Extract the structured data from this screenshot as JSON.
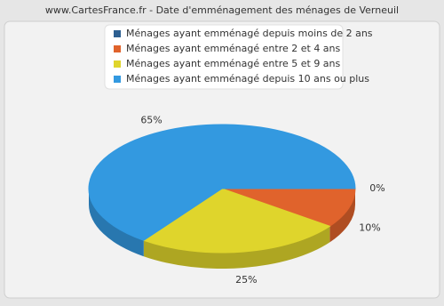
{
  "chart_data": {
    "type": "pie3d",
    "title": "www.CartesFrance.fr - Date d'emménagement des ménages de Verneuil",
    "series": [
      {
        "name": "Ménages ayant emménagé depuis moins de 2 ans",
        "color": "#2d5f91"
      },
      {
        "name": "Ménages ayant emménagé entre 2 et 4 ans",
        "color": "#e0632c"
      },
      {
        "name": "Ménages ayant emménagé entre 5 et 9 ans",
        "color": "#dfd52c"
      },
      {
        "name": "Ménages ayant emménagé depuis 10 ans ou plus",
        "color": "#3399e0"
      }
    ],
    "values": [
      0,
      10,
      25,
      65
    ],
    "value_labels": [
      "0%",
      "10%",
      "25%",
      "65%"
    ]
  }
}
